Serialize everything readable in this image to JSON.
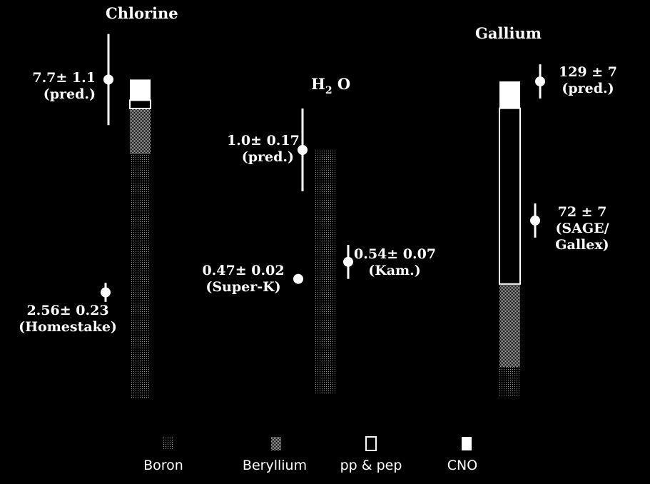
{
  "chart_data": {
    "type": "bar",
    "stack_order": [
      "Boron",
      "Beryllium",
      "pp & pep",
      "CNO"
    ],
    "panels": [
      {
        "title": "Chlorine",
        "components": {
          "Boron": 5.9,
          "Beryllium": 1.1,
          "pp & pep": 0.2,
          "CNO": 0.5
        },
        "prediction": {
          "value": 7.7,
          "error": 1.1,
          "label_value": "7.7± 1.1",
          "label_note": "(pred.)"
        },
        "measurements": [
          {
            "value": 2.56,
            "error": 0.23,
            "label_value": "2.56± 0.23",
            "label_note": "(Homestake)"
          }
        ]
      },
      {
        "title_main": "H",
        "title_sub": "2",
        "title_tail": "O",
        "components": {
          "Boron": 1.0
        },
        "prediction": {
          "value": 1.0,
          "error": 0.17,
          "label_value": "1.0± 0.17",
          "label_note": "(pred.)"
        },
        "measurements": [
          {
            "value": 0.47,
            "error": 0.02,
            "label_value": "0.47± 0.02",
            "label_note": "(Super-K)"
          },
          {
            "value": 0.54,
            "error": 0.07,
            "label_value": "0.54± 0.07",
            "label_note": "(Kam.)"
          }
        ]
      },
      {
        "title": "Gallium",
        "components": {
          "Boron": 12,
          "Beryllium": 34,
          "pp & pep": 72,
          "CNO": 11
        },
        "prediction": {
          "value": 129,
          "error": 7,
          "label_value": "129 ± 7",
          "label_note": "(pred.)"
        },
        "measurements": [
          {
            "value": 72,
            "error": 7,
            "label_value": "72 ± 7",
            "label_note1": "(SAGE/",
            "label_note2": "Gallex)"
          }
        ]
      }
    ],
    "legend": [
      "Boron",
      "Beryllium",
      "pp & pep",
      "CNO"
    ],
    "grid": false
  }
}
